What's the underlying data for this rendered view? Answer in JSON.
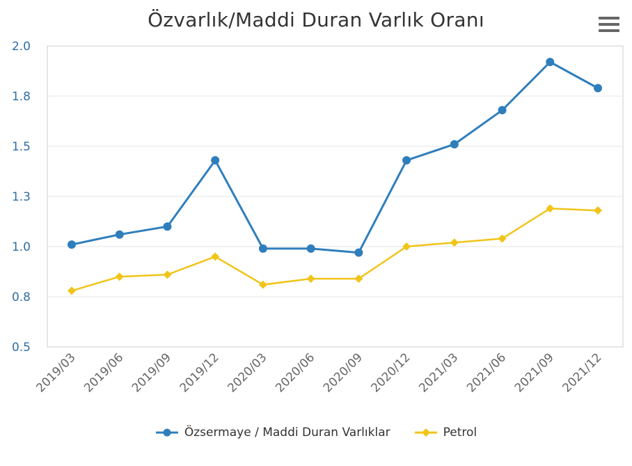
{
  "chart_data": {
    "type": "line",
    "title": "Özvarlık/Maddi Duran Varlık Oranı",
    "categories": [
      "2019/03",
      "2019/06",
      "2019/09",
      "2019/12",
      "2020/03",
      "2020/06",
      "2020/09",
      "2020/12",
      "2021/03",
      "2021/06",
      "2021/09",
      "2021/12"
    ],
    "y_tick_labels": [
      "0.5",
      "0.8",
      "1.0",
      "1.3",
      "1.5",
      "1.8",
      "2.0"
    ],
    "ylim": [
      0.5,
      2.0
    ],
    "grid": true,
    "legend_position": "bottom-center",
    "series": [
      {
        "name": "Özsermaye / Maddi Duran Varlıklar",
        "color": "#2f7ebc",
        "marker": "circle",
        "values": [
          1.01,
          1.06,
          1.1,
          1.43,
          0.99,
          0.99,
          0.97,
          1.43,
          1.51,
          1.68,
          1.92,
          1.79
        ]
      },
      {
        "name": "Petrol",
        "color": "#f0c419",
        "marker": "diamond",
        "values": [
          0.78,
          0.85,
          0.86,
          0.95,
          0.81,
          0.84,
          0.84,
          1.0,
          1.02,
          1.04,
          1.19,
          1.18
        ]
      }
    ]
  },
  "colors": {
    "axis_label": "#2f6ea5",
    "category_label": "#666666",
    "grid": "#e6e6e6",
    "plot_border": "#cccccc"
  },
  "icons": {
    "menu": "hamburger-menu-icon"
  }
}
